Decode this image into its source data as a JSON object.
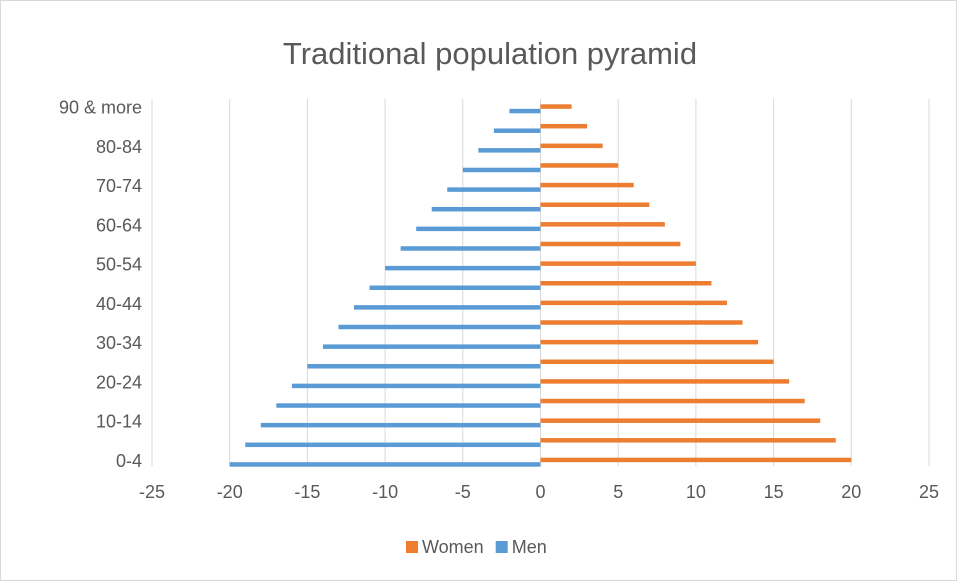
{
  "chart_data": {
    "type": "bar",
    "orientation": "horizontal",
    "title": "Traditional population pyramid",
    "categories": [
      "0-4",
      null,
      "10-14",
      null,
      "20-24",
      null,
      "30-34",
      null,
      "40-44",
      null,
      "50-54",
      null,
      "60-64",
      null,
      "70-74",
      null,
      "80-84",
      null,
      "90 & more"
    ],
    "series": [
      {
        "name": "Women",
        "color": "#ED7D31",
        "values": [
          20,
          19,
          18,
          17,
          16,
          15,
          14,
          13,
          12,
          11,
          10,
          9,
          8,
          7,
          6,
          5,
          4,
          3,
          2
        ]
      },
      {
        "name": "Men",
        "color": "#5B9BD5",
        "values": [
          -20,
          -19,
          -18,
          -17,
          -16,
          -15,
          -14,
          -13,
          -12,
          -11,
          -10,
          -9,
          -8,
          -7,
          -6,
          -5,
          -4,
          -3,
          -2
        ]
      }
    ],
    "xlim": [
      -25,
      25
    ],
    "xticks": [
      -25,
      -20,
      -15,
      -10,
      -5,
      0,
      5,
      10,
      15,
      20,
      25
    ],
    "grid": true,
    "legend": "bottom"
  }
}
